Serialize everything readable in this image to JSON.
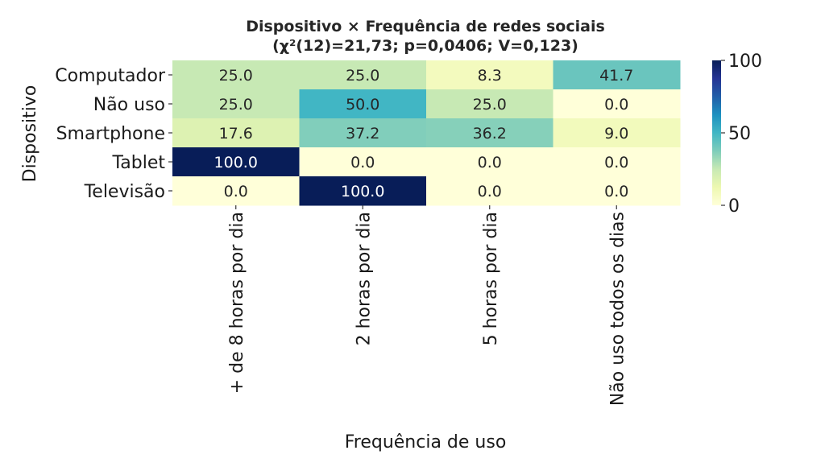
{
  "chart_data": {
    "type": "heatmap",
    "title": "Dispositivo × Frequência de redes sociais",
    "subtitle": "(χ²(12)=21,73; p=0,0406; V=0,123)",
    "xlabel": "Frequência de uso",
    "ylabel": "Dispositivo",
    "x_categories": [
      "+ de 8 horas por dia",
      "2 horas por dia",
      "5 horas por dia",
      "Não uso todos os dias"
    ],
    "y_categories": [
      "Computador",
      "Não uso",
      "Smartphone",
      "Tablet",
      "Televisão"
    ],
    "values": [
      [
        25.0,
        25.0,
        8.3,
        41.7
      ],
      [
        25.0,
        50.0,
        25.0,
        0.0
      ],
      [
        17.6,
        37.2,
        36.2,
        9.0
      ],
      [
        100.0,
        0.0,
        0.0,
        0.0
      ],
      [
        0.0,
        100.0,
        0.0,
        0.0
      ]
    ],
    "value_labels": [
      [
        "25.0",
        "25.0",
        "8.3",
        "41.7"
      ],
      [
        "25.0",
        "50.0",
        "25.0",
        "0.0"
      ],
      [
        "17.6",
        "37.2",
        "36.2",
        "9.0"
      ],
      [
        "100.0",
        "0.0",
        "0.0",
        "0.0"
      ],
      [
        "0.0",
        "100.0",
        "0.0",
        "0.0"
      ]
    ],
    "colormap": "YlGnBu",
    "vmin": 0,
    "vmax": 100,
    "colorbar": {
      "ticks": [
        0,
        50,
        100
      ],
      "tick_labels": [
        "0",
        "50",
        "100"
      ]
    }
  }
}
